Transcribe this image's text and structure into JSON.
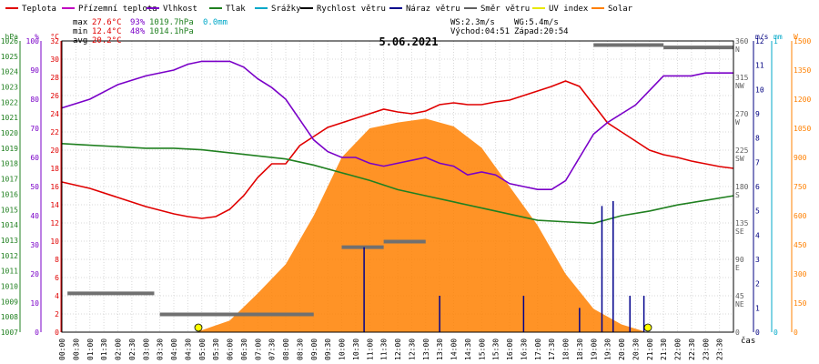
{
  "chart_data": {
    "type": "line",
    "title": "5.06.2021",
    "xlabel": "čas",
    "x_hours": [
      0,
      24
    ],
    "x_ticks": [
      "00:00",
      "00:30",
      "01:00",
      "01:30",
      "02:00",
      "02:30",
      "03:00",
      "03:30",
      "04:00",
      "04:30",
      "05:00",
      "05:30",
      "06:00",
      "06:30",
      "07:00",
      "07:30",
      "08:00",
      "08:30",
      "09:00",
      "09:30",
      "10:00",
      "10:30",
      "11:00",
      "11:30",
      "12:00",
      "12:30",
      "13:00",
      "13:30",
      "14:00",
      "14:30",
      "15:00",
      "15:30",
      "16:00",
      "16:30",
      "17:00",
      "17:30",
      "18:00",
      "18:30",
      "19:00",
      "19:30",
      "20:00",
      "20:30",
      "21:00",
      "21:30",
      "22:00",
      "22:30",
      "23:00",
      "23:30"
    ],
    "grid": true,
    "legend": [
      {
        "label": "Teplota",
        "color": "#e00000",
        "style": "line"
      },
      {
        "label": "Přízemní teplota",
        "color": "#c000c0",
        "style": "line"
      },
      {
        "label": "Vlhkost",
        "color": "#7a00c8",
        "style": "line"
      },
      {
        "label": "Tlak",
        "color": "#208020",
        "style": "line"
      },
      {
        "label": "Srážky",
        "color": "#00a8c8",
        "style": "line"
      },
      {
        "label": "Rychlost větru",
        "color": "#000000",
        "style": "line"
      },
      {
        "label": "Náraz větru",
        "color": "#00008c",
        "style": "line"
      },
      {
        "label": "Směr větru",
        "color": "#606060",
        "style": "line"
      },
      {
        "label": "UV index",
        "color": "#e8e800",
        "style": "line"
      },
      {
        "label": "Solar",
        "color": "#ff8000",
        "style": "line"
      }
    ],
    "stats": {
      "max_label": "max",
      "max_temp": "27.6°C",
      "max_hum": "93%",
      "max_press": "1019.7hPa",
      "max_rain": "0.0mm",
      "min_label": "min",
      "min_temp": "12.4°C",
      "min_hum": "48%",
      "min_press": "1014.1hPa",
      "avg_label": "avg",
      "avg_temp": "20.2°C",
      "ws": "WS:2.3m/s",
      "wg": "WG:5.4m/s",
      "sunrise": "Východ:04:51",
      "sunset": "Západ:20:54"
    },
    "axes": {
      "hpa": {
        "unit": "hPa",
        "range": [
          1007,
          1026
        ],
        "ticks": [
          1007,
          1008,
          1009,
          1010,
          1011,
          1012,
          1013,
          1014,
          1015,
          1016,
          1017,
          1018,
          1019,
          1020,
          1021,
          1022,
          1023,
          1024,
          1025,
          1026
        ],
        "color": "#208020"
      },
      "pct": {
        "unit": "%",
        "range": [
          0,
          100
        ],
        "ticks": [
          0,
          10,
          20,
          30,
          40,
          50,
          60,
          70,
          80,
          90,
          100
        ],
        "color": "#7a00c8"
      },
      "temp": {
        "unit": "°C",
        "range": [
          0,
          32
        ],
        "ticks": [
          0,
          2,
          4,
          6,
          8,
          10,
          12,
          14,
          16,
          18,
          20,
          22,
          24,
          26,
          28,
          30,
          32
        ],
        "color": "#e00000"
      },
      "dir": {
        "range": [
          0,
          360
        ],
        "ticks": [
          "0",
          "45",
          "90",
          "135",
          "180",
          "225",
          "270",
          "315",
          "360"
        ],
        "dirs": [
          "",
          "NE",
          "E",
          "SE",
          "S",
          "SW",
          "W",
          "NW",
          "N"
        ],
        "color": "#606060"
      },
      "ms": {
        "unit": "m/s",
        "range": [
          0,
          12
        ],
        "ticks": [
          0,
          1,
          2,
          3,
          4,
          5,
          6,
          7,
          8,
          9,
          10,
          11,
          12
        ],
        "color": "#000080"
      },
      "mm": {
        "unit": "mm",
        "range": [
          0,
          1
        ],
        "ticks": [
          0,
          1
        ],
        "color": "#00a8c8"
      },
      "w": {
        "unit": "W",
        "range": [
          0,
          1500
        ],
        "ticks": [
          0,
          150,
          300,
          450,
          600,
          750,
          900,
          1050,
          1200,
          1350,
          1500
        ],
        "color": "#ff8000"
      }
    },
    "series": [
      {
        "name": "Teplota",
        "axis": "temp",
        "color": "#e00000",
        "points": [
          [
            0,
            16.5
          ],
          [
            1,
            15.8
          ],
          [
            2,
            14.8
          ],
          [
            3,
            13.8
          ],
          [
            4,
            13
          ],
          [
            4.5,
            12.7
          ],
          [
            5,
            12.5
          ],
          [
            5.5,
            12.7
          ],
          [
            6,
            13.5
          ],
          [
            6.5,
            15
          ],
          [
            7,
            17
          ],
          [
            7.5,
            18.5
          ],
          [
            8,
            18.5
          ],
          [
            8.5,
            20.5
          ],
          [
            9,
            21.5
          ],
          [
            9.5,
            22.5
          ],
          [
            10,
            23
          ],
          [
            10.5,
            23.5
          ],
          [
            11,
            24
          ],
          [
            11.5,
            24.5
          ],
          [
            12,
            24.2
          ],
          [
            12.5,
            24
          ],
          [
            13,
            24.3
          ],
          [
            13.5,
            25
          ],
          [
            14,
            25.2
          ],
          [
            14.5,
            25
          ],
          [
            15,
            25
          ],
          [
            15.5,
            25.3
          ],
          [
            16,
            25.5
          ],
          [
            16.5,
            26
          ],
          [
            17,
            26.5
          ],
          [
            17.5,
            27
          ],
          [
            18,
            27.6
          ],
          [
            18.5,
            27
          ],
          [
            19,
            25
          ],
          [
            19.5,
            23
          ],
          [
            20,
            22
          ],
          [
            20.5,
            21
          ],
          [
            21,
            20
          ],
          [
            21.5,
            19.5
          ],
          [
            22,
            19.2
          ],
          [
            22.5,
            18.8
          ],
          [
            23,
            18.5
          ],
          [
            23.5,
            18.2
          ],
          [
            24,
            18
          ]
        ]
      },
      {
        "name": "Vlhkost",
        "axis": "pct",
        "color": "#7a00c8",
        "points": [
          [
            0,
            77
          ],
          [
            1,
            80
          ],
          [
            2,
            85
          ],
          [
            3,
            88
          ],
          [
            4,
            90
          ],
          [
            4.5,
            92
          ],
          [
            5,
            93
          ],
          [
            5.5,
            93
          ],
          [
            6,
            93
          ],
          [
            6.5,
            91
          ],
          [
            7,
            87
          ],
          [
            7.5,
            84
          ],
          [
            8,
            80
          ],
          [
            8.5,
            73
          ],
          [
            9,
            66
          ],
          [
            9.5,
            62
          ],
          [
            10,
            60
          ],
          [
            10.5,
            60
          ],
          [
            11,
            58
          ],
          [
            11.5,
            57
          ],
          [
            12,
            58
          ],
          [
            12.5,
            59
          ],
          [
            13,
            60
          ],
          [
            13.5,
            58
          ],
          [
            14,
            57
          ],
          [
            14.5,
            54
          ],
          [
            15,
            55
          ],
          [
            15.5,
            54
          ],
          [
            16,
            51
          ],
          [
            16.5,
            50
          ],
          [
            17,
            49
          ],
          [
            17.5,
            49
          ],
          [
            18,
            52
          ],
          [
            18.5,
            60
          ],
          [
            19,
            68
          ],
          [
            19.5,
            72
          ],
          [
            20,
            75
          ],
          [
            20.5,
            78
          ],
          [
            21,
            83
          ],
          [
            21.5,
            88
          ],
          [
            22,
            88
          ],
          [
            22.5,
            88
          ],
          [
            23,
            89
          ],
          [
            23.5,
            89
          ],
          [
            24,
            89
          ]
        ]
      },
      {
        "name": "Tlak",
        "axis": "hpa",
        "color": "#208020",
        "points": [
          [
            0,
            1019.3
          ],
          [
            1,
            1019.2
          ],
          [
            2,
            1019.1
          ],
          [
            3,
            1019
          ],
          [
            4,
            1019
          ],
          [
            5,
            1018.9
          ],
          [
            6,
            1018.7
          ],
          [
            7,
            1018.5
          ],
          [
            8,
            1018.3
          ],
          [
            9,
            1017.9
          ],
          [
            10,
            1017.4
          ],
          [
            11,
            1016.9
          ],
          [
            12,
            1016.3
          ],
          [
            13,
            1015.9
          ],
          [
            14,
            1015.5
          ],
          [
            15,
            1015.1
          ],
          [
            16,
            1014.7
          ],
          [
            17,
            1014.3
          ],
          [
            18,
            1014.2
          ],
          [
            19,
            1014.1
          ],
          [
            20,
            1014.6
          ],
          [
            21,
            1014.9
          ],
          [
            22,
            1015.3
          ],
          [
            23,
            1015.6
          ],
          [
            24,
            1015.9
          ]
        ]
      },
      {
        "name": "Solar",
        "axis": "w",
        "color": "#ff8000",
        "points": [
          [
            4.8,
            0
          ],
          [
            6,
            60
          ],
          [
            7,
            200
          ],
          [
            8,
            350
          ],
          [
            9,
            600
          ],
          [
            10,
            900
          ],
          [
            11,
            1050
          ],
          [
            12,
            1080
          ],
          [
            13,
            1100
          ],
          [
            14,
            1060
          ],
          [
            15,
            950
          ],
          [
            16,
            750
          ],
          [
            17,
            550
          ],
          [
            18,
            300
          ],
          [
            19,
            120
          ],
          [
            20,
            40
          ],
          [
            20.9,
            0
          ]
        ]
      }
    ],
    "direction_degrees": [
      {
        "x_range": [
          0.2,
          3.3
        ],
        "value": 48
      },
      {
        "x_range": [
          3.5,
          9.0
        ],
        "value": 22
      },
      {
        "x_range": [
          10.0,
          11.5
        ],
        "value": 105
      },
      {
        "x_range": [
          11.5,
          13.0
        ],
        "value": 112
      },
      {
        "x_range": [
          19.0,
          21.5
        ],
        "value": 355
      },
      {
        "x_range": [
          21.5,
          24.0
        ],
        "value": 352
      }
    ],
    "wind_gust_ms": [
      {
        "x": 10.8,
        "value": 3.5
      },
      {
        "x": 13.5,
        "value": 1.5
      },
      {
        "x": 16.5,
        "value": 1.5
      },
      {
        "x": 18.5,
        "value": 1.0
      },
      {
        "x": 19.3,
        "value": 5.2
      },
      {
        "x": 19.7,
        "value": 5.4
      },
      {
        "x": 20.3,
        "value": 1.5
      },
      {
        "x": 20.8,
        "value": 1.5
      }
    ]
  }
}
